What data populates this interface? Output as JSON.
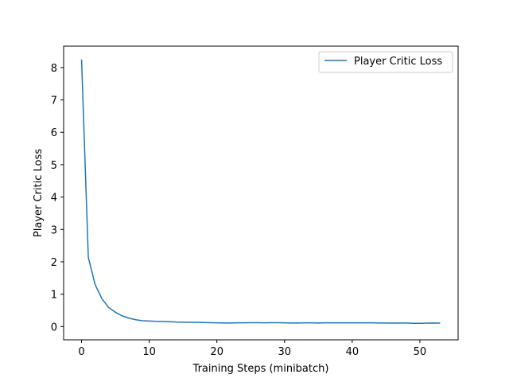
{
  "chart_data": {
    "type": "line",
    "title": "",
    "xlabel": "Training Steps (minibatch)",
    "ylabel": "Player Critic Loss",
    "xlim": [
      -2.65,
      55.65
    ],
    "ylim": [
      -0.41,
      8.66
    ],
    "xticks": [
      0,
      10,
      20,
      30,
      40,
      50
    ],
    "yticks": [
      0,
      1,
      2,
      3,
      4,
      5,
      6,
      7,
      8
    ],
    "grid": false,
    "legend_position": "top-right",
    "series": [
      {
        "name": "Player Critic Loss",
        "color": "#1f77b4",
        "x": [
          0,
          1,
          2,
          3,
          4,
          5,
          6,
          7,
          8,
          9,
          10,
          11,
          12,
          13,
          14,
          15,
          16,
          17,
          18,
          19,
          20,
          21,
          22,
          23,
          24,
          25,
          26,
          27,
          28,
          29,
          30,
          31,
          32,
          33,
          34,
          35,
          36,
          37,
          38,
          39,
          40,
          41,
          42,
          43,
          44,
          45,
          46,
          47,
          48,
          49,
          50,
          51,
          52,
          53
        ],
        "y": [
          8.25,
          2.14,
          1.3,
          0.86,
          0.59,
          0.44,
          0.33,
          0.26,
          0.21,
          0.18,
          0.17,
          0.16,
          0.155,
          0.15,
          0.14,
          0.135,
          0.13,
          0.13,
          0.125,
          0.12,
          0.115,
          0.11,
          0.11,
          0.115,
          0.115,
          0.12,
          0.12,
          0.115,
          0.12,
          0.12,
          0.115,
          0.11,
          0.11,
          0.115,
          0.115,
          0.11,
          0.115,
          0.115,
          0.115,
          0.115,
          0.115,
          0.115,
          0.115,
          0.115,
          0.11,
          0.11,
          0.105,
          0.11,
          0.11,
          0.1,
          0.1,
          0.105,
          0.11,
          0.105
        ]
      }
    ]
  }
}
